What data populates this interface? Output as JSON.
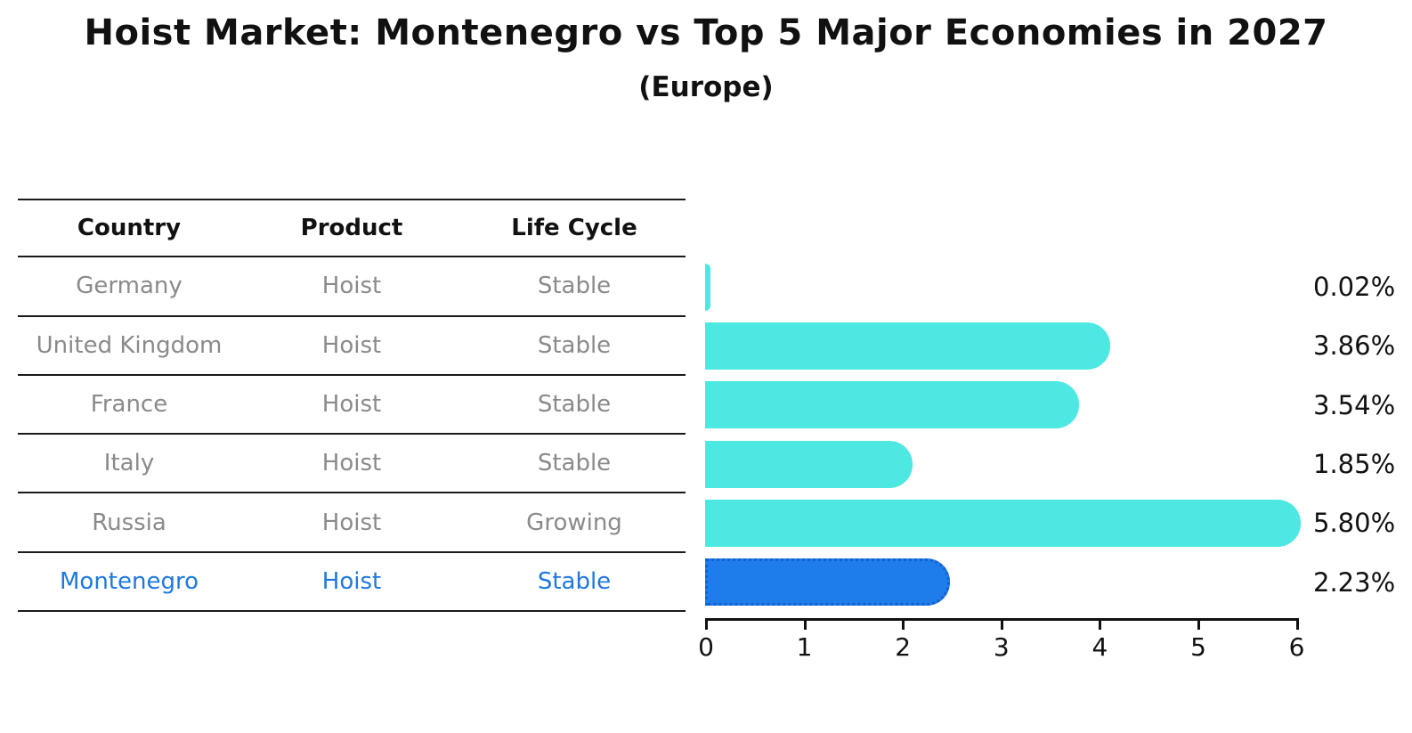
{
  "title": "Hoist Market: Montenegro vs Top 5 Major Economies in 2027",
  "subtitle": "(Europe)",
  "table": {
    "headers": [
      "Country",
      "Product",
      "Life Cycle"
    ],
    "rows": [
      {
        "country": "Germany",
        "product": "Hoist",
        "life_cycle": "Stable",
        "highlight": false
      },
      {
        "country": "United Kingdom",
        "product": "Hoist",
        "life_cycle": "Stable",
        "highlight": false
      },
      {
        "country": "France",
        "product": "Hoist",
        "life_cycle": "Stable",
        "highlight": false
      },
      {
        "country": "Italy",
        "product": "Hoist",
        "life_cycle": "Stable",
        "highlight": false
      },
      {
        "country": "Russia",
        "product": "Hoist",
        "life_cycle": "Growing",
        "highlight": false
      },
      {
        "country": "Montenegro",
        "product": "Hoist",
        "life_cycle": "Stable",
        "highlight": true
      }
    ]
  },
  "chart_data": {
    "type": "bar",
    "orientation": "horizontal",
    "categories": [
      "Germany",
      "United Kingdom",
      "France",
      "Italy",
      "Russia",
      "Montenegro"
    ],
    "values": [
      0.02,
      3.86,
      3.54,
      1.85,
      5.8,
      2.23
    ],
    "data_labels": [
      "0.02%",
      "3.86%",
      "3.54%",
      "1.85%",
      "5.80%",
      "2.23%"
    ],
    "highlight_index": 5,
    "title": "Hoist Market: Montenegro vs Top 5 Major Economies in 2027 (Europe)",
    "xlabel": "",
    "ylabel": "",
    "xlim": [
      0,
      6
    ],
    "xticks": [
      "0",
      "1",
      "2",
      "3",
      "4",
      "5",
      "6"
    ],
    "grid": false,
    "legend": false,
    "bar_color": "#4de8e1",
    "highlight_bar_color": "#1e7deb",
    "highlight_border_color": "#1260cf",
    "highlight_text_color": "#1e78e0",
    "table_text_color": "#8a8a8a",
    "axis_color": "#111111"
  }
}
